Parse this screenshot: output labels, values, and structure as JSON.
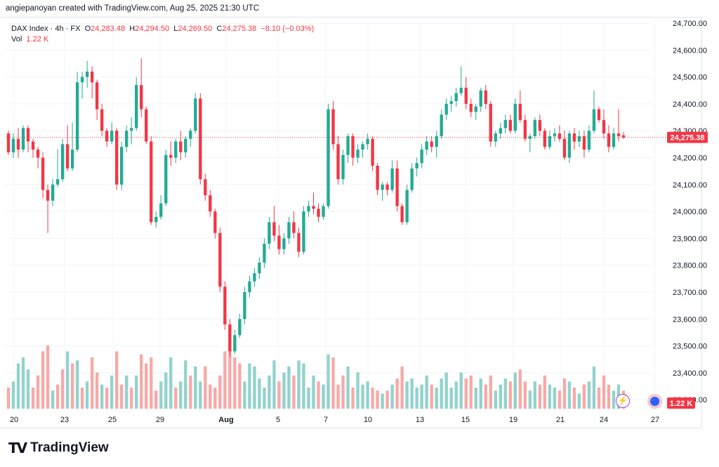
{
  "header": {
    "attribution": "angiepanoyan created with TradingView.com, Aug 25, 2025 21:30 UTC"
  },
  "legend": {
    "symbol": "DAX Index · 4h · FX",
    "o_label": "O",
    "o_value": "24,283.48",
    "h_label": "H",
    "h_value": "24,294.50",
    "l_label": "L",
    "l_value": "24,269.50",
    "c_label": "C",
    "c_value": "24,275.38",
    "change": "−8.10 (−0.03%)",
    "vol_label": "Vol",
    "vol_value": "1.22 K"
  },
  "colors": {
    "up": "#22ab94",
    "down": "#f23645",
    "up_vol": "#92d2cc",
    "down_vol": "#f7a9a7",
    "axis_text": "#131722",
    "grid": "#f0f3fa"
  },
  "footer": {
    "logo_text": "TradingView",
    "logo_mark": "TV"
  },
  "chart_data": {
    "type": "candlestick",
    "interval": "4h",
    "ylim": [
      23260,
      24760
    ],
    "y_ticks": [
      "24,700.00",
      "24,600.00",
      "24,500.00",
      "24,400.00",
      "24,300.00",
      "24,200.00",
      "24,100.00",
      "24,000.00",
      "23,900.00",
      "23,800.00",
      "23,700.00",
      "23,600.00",
      "23,500.00",
      "23,400.00",
      "23,300.00"
    ],
    "x_ticks": [
      "20",
      "23",
      "25",
      "29",
      "Aug",
      "5",
      "7",
      "10",
      "13",
      "15",
      "19",
      "21",
      "24",
      "27"
    ],
    "last_price_label": "24,275.38",
    "last_price": 24275.38,
    "volume_label": "1.22 K",
    "candles": [
      [
        24290,
        24300,
        24210,
        24220
      ],
      [
        24220,
        24290,
        24200,
        24270
      ],
      [
        24270,
        24310,
        24200,
        24230
      ],
      [
        24230,
        24320,
        24220,
        24310
      ],
      [
        24310,
        24320,
        24220,
        24260
      ],
      [
        24260,
        24270,
        24200,
        24230
      ],
      [
        24230,
        24240,
        24160,
        24200
      ],
      [
        24200,
        24220,
        24050,
        24080
      ],
      [
        24080,
        24100,
        23920,
        24040
      ],
      [
        24040,
        24120,
        24020,
        24100
      ],
      [
        24100,
        24230,
        24090,
        24120
      ],
      [
        24120,
        24270,
        24110,
        24250
      ],
      [
        24250,
        24320,
        24150,
        24160
      ],
      [
        24160,
        24330,
        24150,
        24230
      ],
      [
        24230,
        24520,
        24220,
        24480
      ],
      [
        24480,
        24520,
        24420,
        24500
      ],
      [
        24500,
        24560,
        24460,
        24520
      ],
      [
        24520,
        24540,
        24420,
        24480
      ],
      [
        24480,
        24490,
        24340,
        24380
      ],
      [
        24380,
        24400,
        24280,
        24300
      ],
      [
        24300,
        24310,
        24240,
        24260
      ],
      [
        24260,
        24330,
        24250,
        24300
      ],
      [
        24300,
        24310,
        24080,
        24100
      ],
      [
        24100,
        24260,
        24080,
        24240
      ],
      [
        24240,
        24320,
        24220,
        24300
      ],
      [
        24300,
        24350,
        24250,
        24310
      ],
      [
        24310,
        24500,
        24300,
        24470
      ],
      [
        24470,
        24570,
        24350,
        24380
      ],
      [
        24380,
        24390,
        24250,
        24260
      ],
      [
        24260,
        24280,
        23950,
        23960
      ],
      [
        23960,
        24000,
        23940,
        23980
      ],
      [
        23980,
        24060,
        23970,
        24030
      ],
      [
        24030,
        24230,
        24020,
        24210
      ],
      [
        24210,
        24260,
        24170,
        24200
      ],
      [
        24200,
        24270,
        24180,
        24260
      ],
      [
        24260,
        24300,
        24190,
        24220
      ],
      [
        24220,
        24280,
        24200,
        24270
      ],
      [
        24270,
        24310,
        24240,
        24300
      ],
      [
        24300,
        24440,
        24290,
        24420
      ],
      [
        24420,
        24440,
        24100,
        24120
      ],
      [
        24120,
        24140,
        24040,
        24060
      ],
      [
        24060,
        24080,
        23980,
        24000
      ],
      [
        24000,
        24010,
        23900,
        23920
      ],
      [
        23920,
        23940,
        23700,
        23720
      ],
      [
        23720,
        23740,
        23560,
        23580
      ],
      [
        23580,
        23600,
        23460,
        23480
      ],
      [
        23480,
        23560,
        23470,
        23540
      ],
      [
        23540,
        23620,
        23530,
        23600
      ],
      [
        23600,
        23720,
        23580,
        23700
      ],
      [
        23700,
        23760,
        23680,
        23740
      ],
      [
        23740,
        23790,
        23720,
        23770
      ],
      [
        23770,
        23830,
        23750,
        23810
      ],
      [
        23810,
        23900,
        23790,
        23880
      ],
      [
        23880,
        23980,
        23860,
        23960
      ],
      [
        23960,
        24020,
        23890,
        23910
      ],
      [
        23910,
        23950,
        23840,
        23860
      ],
      [
        23860,
        23920,
        23840,
        23900
      ],
      [
        23900,
        23980,
        23880,
        23960
      ],
      [
        23960,
        24000,
        23900,
        23920
      ],
      [
        23920,
        23940,
        23830,
        23850
      ],
      [
        23850,
        24020,
        23840,
        24000
      ],
      [
        24000,
        24040,
        23980,
        24020
      ],
      [
        24020,
        24070,
        23990,
        24010
      ],
      [
        24010,
        24030,
        23960,
        23980
      ],
      [
        23980,
        24030,
        23970,
        24020
      ],
      [
        24020,
        24400,
        24010,
        24380
      ],
      [
        24380,
        24410,
        24230,
        24250
      ],
      [
        24250,
        24280,
        24100,
        24120
      ],
      [
        24120,
        24230,
        24100,
        24210
      ],
      [
        24210,
        24290,
        24180,
        24280
      ],
      [
        24280,
        24290,
        24170,
        24200
      ],
      [
        24200,
        24250,
        24180,
        24230
      ],
      [
        24230,
        24260,
        24200,
        24250
      ],
      [
        24250,
        24290,
        24230,
        24270
      ],
      [
        24270,
        24280,
        24150,
        24170
      ],
      [
        24170,
        24180,
        24060,
        24080
      ],
      [
        24080,
        24110,
        24040,
        24100
      ],
      [
        24100,
        24110,
        24060,
        24080
      ],
      [
        24080,
        24190,
        24070,
        24160
      ],
      [
        24160,
        24190,
        24000,
        24020
      ],
      [
        24020,
        24030,
        23950,
        23960
      ],
      [
        23960,
        24100,
        23950,
        24080
      ],
      [
        24080,
        24180,
        24070,
        24160
      ],
      [
        24160,
        24200,
        24130,
        24180
      ],
      [
        24180,
        24250,
        24160,
        24230
      ],
      [
        24230,
        24280,
        24210,
        24260
      ],
      [
        24260,
        24280,
        24220,
        24240
      ],
      [
        24240,
        24300,
        24200,
        24280
      ],
      [
        24280,
        24380,
        24270,
        24360
      ],
      [
        24360,
        24420,
        24340,
        24400
      ],
      [
        24400,
        24430,
        24370,
        24410
      ],
      [
        24410,
        24460,
        24390,
        24440
      ],
      [
        24440,
        24540,
        24430,
        24460
      ],
      [
        24460,
        24500,
        24380,
        24400
      ],
      [
        24400,
        24420,
        24350,
        24370
      ],
      [
        24370,
        24400,
        24340,
        24390
      ],
      [
        24390,
        24460,
        24370,
        24450
      ],
      [
        24450,
        24470,
        24380,
        24400
      ],
      [
        24400,
        24410,
        24240,
        24260
      ],
      [
        24260,
        24300,
        24240,
        24290
      ],
      [
        24290,
        24330,
        24270,
        24310
      ],
      [
        24310,
        24360,
        24290,
        24340
      ],
      [
        24340,
        24360,
        24290,
        24300
      ],
      [
        24300,
        24420,
        24290,
        24400
      ],
      [
        24400,
        24450,
        24330,
        24340
      ],
      [
        24340,
        24360,
        24260,
        24270
      ],
      [
        24270,
        24290,
        24220,
        24280
      ],
      [
        24280,
        24350,
        24270,
        24340
      ],
      [
        24340,
        24360,
        24280,
        24300
      ],
      [
        24300,
        24310,
        24230,
        24240
      ],
      [
        24240,
        24300,
        24230,
        24280
      ],
      [
        24280,
        24310,
        24260,
        24290
      ],
      [
        24290,
        24320,
        24260,
        24270
      ],
      [
        24270,
        24300,
        24190,
        24200
      ],
      [
        24200,
        24300,
        24180,
        24290
      ],
      [
        24290,
        24310,
        24230,
        24260
      ],
      [
        24260,
        24300,
        24240,
        24280
      ],
      [
        24280,
        24300,
        24200,
        24230
      ],
      [
        24230,
        24320,
        24220,
        24300
      ],
      [
        24300,
        24450,
        24290,
        24380
      ],
      [
        24380,
        24390,
        24330,
        24340
      ],
      [
        24340,
        24380,
        24270,
        24290
      ],
      [
        24290,
        24320,
        24220,
        24240
      ],
      [
        24240,
        24310,
        24230,
        24290
      ],
      [
        24290,
        24380,
        24260,
        24280
      ],
      [
        24283,
        24295,
        24269,
        24275
      ]
    ],
    "volumes": [
      [
        0.35,
        "d"
      ],
      [
        0.45,
        "u"
      ],
      [
        0.75,
        "u"
      ],
      [
        0.85,
        "u"
      ],
      [
        0.65,
        "u"
      ],
      [
        0.35,
        "d"
      ],
      [
        0.55,
        "d"
      ],
      [
        0.95,
        "d"
      ],
      [
        1.05,
        "d"
      ],
      [
        0.3,
        "u"
      ],
      [
        0.4,
        "d"
      ],
      [
        0.65,
        "d"
      ],
      [
        0.95,
        "u"
      ],
      [
        0.75,
        "d"
      ],
      [
        0.8,
        "u"
      ],
      [
        0.35,
        "d"
      ],
      [
        0.45,
        "u"
      ],
      [
        0.85,
        "d"
      ],
      [
        0.6,
        "d"
      ],
      [
        0.4,
        "u"
      ],
      [
        0.35,
        "d"
      ],
      [
        0.55,
        "u"
      ],
      [
        0.95,
        "d"
      ],
      [
        0.4,
        "d"
      ],
      [
        0.55,
        "u"
      ],
      [
        0.35,
        "d"
      ],
      [
        0.55,
        "u"
      ],
      [
        0.9,
        "d"
      ],
      [
        0.75,
        "d"
      ],
      [
        0.85,
        "d"
      ],
      [
        0.3,
        "d"
      ],
      [
        0.45,
        "u"
      ],
      [
        0.6,
        "u"
      ],
      [
        0.85,
        "u"
      ],
      [
        0.35,
        "d"
      ],
      [
        0.45,
        "u"
      ],
      [
        0.8,
        "u"
      ],
      [
        0.55,
        "d"
      ],
      [
        0.7,
        "u"
      ],
      [
        0.45,
        "u"
      ],
      [
        0.7,
        "d"
      ],
      [
        0.4,
        "d"
      ],
      [
        0.35,
        "d"
      ],
      [
        0.55,
        "d"
      ],
      [
        0.95,
        "d"
      ],
      [
        1.0,
        "d"
      ],
      [
        0.85,
        "d"
      ],
      [
        0.75,
        "d"
      ],
      [
        0.45,
        "u"
      ],
      [
        0.75,
        "u"
      ],
      [
        0.7,
        "u"
      ],
      [
        0.5,
        "u"
      ],
      [
        0.35,
        "u"
      ],
      [
        0.55,
        "u"
      ],
      [
        0.8,
        "u"
      ],
      [
        0.45,
        "d"
      ],
      [
        0.6,
        "u"
      ],
      [
        0.7,
        "u"
      ],
      [
        0.55,
        "d"
      ],
      [
        0.8,
        "u"
      ],
      [
        0.75,
        "u"
      ],
      [
        0.35,
        "u"
      ],
      [
        0.55,
        "u"
      ],
      [
        0.45,
        "d"
      ],
      [
        0.4,
        "u"
      ],
      [
        0.9,
        "u"
      ],
      [
        0.85,
        "d"
      ],
      [
        0.4,
        "d"
      ],
      [
        0.55,
        "d"
      ],
      [
        0.7,
        "u"
      ],
      [
        0.35,
        "d"
      ],
      [
        0.6,
        "u"
      ],
      [
        0.4,
        "u"
      ],
      [
        0.45,
        "u"
      ],
      [
        0.35,
        "d"
      ],
      [
        0.3,
        "d"
      ],
      [
        0.25,
        "u"
      ],
      [
        0.3,
        "d"
      ],
      [
        0.4,
        "u"
      ],
      [
        0.5,
        "d"
      ],
      [
        0.7,
        "d"
      ],
      [
        0.45,
        "u"
      ],
      [
        0.5,
        "u"
      ],
      [
        0.35,
        "u"
      ],
      [
        0.4,
        "u"
      ],
      [
        0.55,
        "u"
      ],
      [
        0.4,
        "d"
      ],
      [
        0.35,
        "u"
      ],
      [
        0.5,
        "u"
      ],
      [
        0.6,
        "u"
      ],
      [
        0.35,
        "u"
      ],
      [
        0.45,
        "u"
      ],
      [
        0.6,
        "u"
      ],
      [
        0.5,
        "d"
      ],
      [
        0.55,
        "d"
      ],
      [
        0.35,
        "u"
      ],
      [
        0.5,
        "u"
      ],
      [
        0.4,
        "d"
      ],
      [
        0.55,
        "d"
      ],
      [
        0.3,
        "u"
      ],
      [
        0.4,
        "u"
      ],
      [
        0.5,
        "u"
      ],
      [
        0.45,
        "d"
      ],
      [
        0.6,
        "u"
      ],
      [
        0.65,
        "d"
      ],
      [
        0.45,
        "d"
      ],
      [
        0.3,
        "u"
      ],
      [
        0.45,
        "u"
      ],
      [
        0.4,
        "d"
      ],
      [
        0.55,
        "d"
      ],
      [
        0.4,
        "u"
      ],
      [
        0.35,
        "u"
      ],
      [
        0.3,
        "d"
      ],
      [
        0.5,
        "d"
      ],
      [
        0.45,
        "u"
      ],
      [
        0.35,
        "d"
      ],
      [
        0.25,
        "u"
      ],
      [
        0.4,
        "d"
      ],
      [
        0.45,
        "u"
      ],
      [
        0.7,
        "u"
      ],
      [
        0.35,
        "d"
      ],
      [
        0.55,
        "d"
      ],
      [
        0.4,
        "d"
      ],
      [
        0.3,
        "u"
      ],
      [
        0.4,
        "u"
      ],
      [
        0.3,
        "d"
      ]
    ]
  }
}
